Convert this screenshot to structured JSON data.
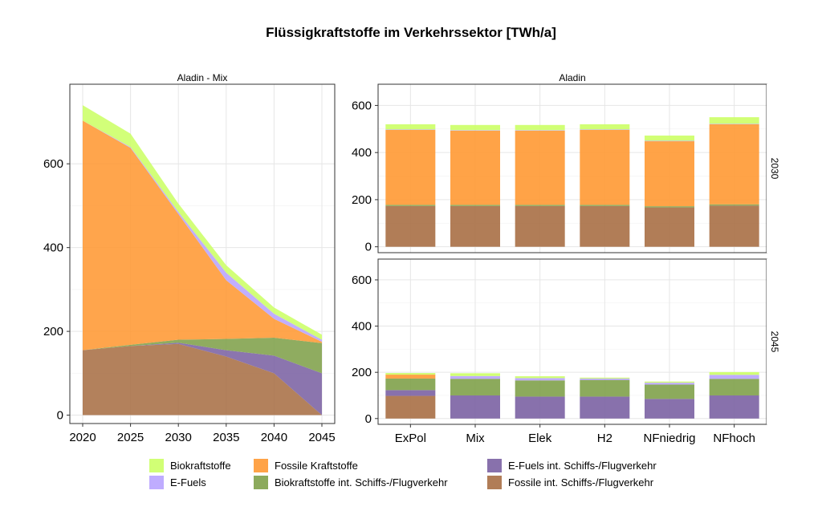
{
  "title": "Flüssigkraftstoffe im Verkehrssektor [TWh/a]",
  "colors": {
    "bio": "#ccff66",
    "efuels": "#b8a3ff",
    "fossil": "#ff9933",
    "bio_int": "#7fa14a",
    "efuels_int": "#7b62a3",
    "fossil_int": "#a86f45"
  },
  "legend": [
    {
      "key": "bio",
      "label": "Biokraftstoffe"
    },
    {
      "key": "efuels",
      "label": "E-Fuels"
    },
    {
      "key": "fossil",
      "label": "Fossile Kraftstoffe"
    },
    {
      "key": "bio_int",
      "label": "Biokraftstoffe int. Schiffs-/Flugverkehr"
    },
    {
      "key": "efuels_int",
      "label": "E-Fuels int. Schiffs-/Flugverkehr"
    },
    {
      "key": "fossil_int",
      "label": "Fossile int. Schiffs-/Flugverkehr"
    }
  ],
  "chart_data": [
    {
      "type": "area",
      "strip_title": "Aladin - Mix",
      "x": [
        2020,
        2025,
        2030,
        2035,
        2040,
        2045
      ],
      "xticks": [
        "2020",
        "2025",
        "2030",
        "2035",
        "2040",
        "2045"
      ],
      "ylim": [
        -20,
        790
      ],
      "yticks": [
        0,
        200,
        400,
        600
      ],
      "stack_order": [
        "fossil_int",
        "efuels_int",
        "bio_int",
        "fossil",
        "efuels",
        "bio"
      ],
      "series": [
        {
          "key": "fossil_int",
          "name": "Fossile int. Schiffs-/Flugverkehr",
          "values": [
            155,
            165,
            170,
            140,
            100,
            0
          ]
        },
        {
          "key": "efuels_int",
          "name": "E-Fuels int. Schiffs-/Flugverkehr",
          "values": [
            0,
            0,
            3,
            15,
            42,
            100
          ]
        },
        {
          "key": "bio_int",
          "name": "Biokraftstoffe int. Schiffs-/Flugverkehr",
          "values": [
            0,
            3,
            7,
            27,
            43,
            72
          ]
        },
        {
          "key": "fossil",
          "name": "Fossile Kraftstoffe",
          "values": [
            548,
            470,
            300,
            140,
            45,
            3
          ]
        },
        {
          "key": "efuels",
          "name": "E-Fuels",
          "values": [
            0,
            2,
            5,
            18,
            12,
            5
          ]
        },
        {
          "key": "bio",
          "name": "Biokraftstoffe",
          "values": [
            37,
            32,
            20,
            18,
            15,
            12
          ]
        }
      ]
    },
    {
      "type": "bar",
      "strip_title": "Aladin",
      "facet_rows": [
        "2030",
        "2045"
      ],
      "categories": [
        "ExPol",
        "Mix",
        "Elek",
        "H2",
        "NFniedrig",
        "NFhoch"
      ],
      "ylim": [
        -25,
        690
      ],
      "yticks": [
        0,
        200,
        400,
        600
      ],
      "stack_order": [
        "fossil_int",
        "efuels_int",
        "bio_int",
        "fossil",
        "efuels",
        "bio"
      ],
      "panels": [
        {
          "row": "2030",
          "series": [
            {
              "key": "fossil_int",
              "values": [
                173,
                173,
                173,
                173,
                167,
                175
              ]
            },
            {
              "key": "efuels_int",
              "values": [
                0,
                0,
                0,
                0,
                0,
                0
              ]
            },
            {
              "key": "bio_int",
              "values": [
                5,
                5,
                5,
                5,
                5,
                5
              ]
            },
            {
              "key": "fossil",
              "values": [
                318,
                315,
                315,
                318,
                276,
                340
              ]
            },
            {
              "key": "efuels",
              "values": [
                2,
                2,
                2,
                2,
                2,
                2
              ]
            },
            {
              "key": "bio",
              "values": [
                22,
                22,
                22,
                22,
                22,
                28
              ]
            }
          ]
        },
        {
          "row": "2045",
          "series": [
            {
              "key": "fossil_int",
              "values": [
                98,
                0,
                0,
                0,
                0,
                0
              ]
            },
            {
              "key": "efuels_int",
              "values": [
                25,
                100,
                95,
                95,
                85,
                100
              ]
            },
            {
              "key": "bio_int",
              "values": [
                50,
                72,
                70,
                72,
                62,
                72
              ]
            },
            {
              "key": "fossil",
              "values": [
                17,
                0,
                0,
                0,
                0,
                0
              ]
            },
            {
              "key": "efuels",
              "values": [
                0,
                12,
                10,
                6,
                8,
                17
              ]
            },
            {
              "key": "bio",
              "values": [
                7,
                12,
                8,
                4,
                5,
                12
              ]
            }
          ]
        }
      ]
    }
  ]
}
